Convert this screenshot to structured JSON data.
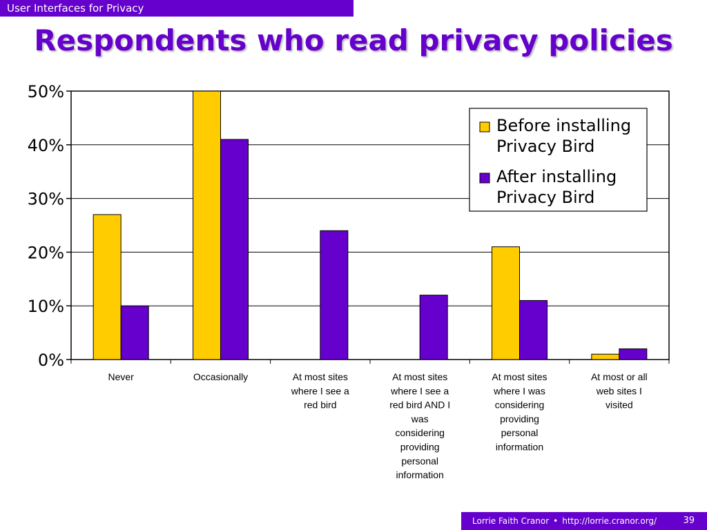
{
  "header": {
    "banner": "User Interfaces for Privacy"
  },
  "slide": {
    "title": "Respondents who read privacy policies"
  },
  "footer": {
    "author": "Lorrie Faith Cranor",
    "separator": "•",
    "url": "http://lorrie.cranor.org/",
    "page": "39"
  },
  "colors": {
    "accent": "#6600cc",
    "before": "#ffcc00",
    "after": "#6600cc"
  },
  "chart_data": {
    "type": "bar",
    "title": "",
    "xlabel": "",
    "ylabel": "",
    "ylim": [
      0,
      50
    ],
    "y_ticks": [
      "0%",
      "10%",
      "20%",
      "30%",
      "40%",
      "50%"
    ],
    "y_tick_values": [
      0,
      10,
      20,
      30,
      40,
      50
    ],
    "grid": true,
    "legend_position": "top-right",
    "categories": [
      [
        "Never"
      ],
      [
        "Occasionally"
      ],
      [
        "At most sites",
        "where I see a",
        "red bird"
      ],
      [
        "At most sites",
        "where I see a",
        "red bird AND I",
        "was",
        "considering",
        "providing",
        "personal",
        "information"
      ],
      [
        "At most sites",
        "where I was",
        "considering",
        "providing",
        "personal",
        "information"
      ],
      [
        "At most or all",
        "web sites I",
        "visited"
      ]
    ],
    "series": [
      {
        "name": [
          "Before installing",
          "Privacy Bird"
        ],
        "color": "#ffcc00",
        "values": [
          27,
          50,
          0,
          0,
          21,
          1
        ]
      },
      {
        "name": [
          "After installing",
          "Privacy Bird"
        ],
        "color": "#6600cc",
        "values": [
          10,
          41,
          24,
          12,
          11,
          2
        ]
      }
    ]
  }
}
